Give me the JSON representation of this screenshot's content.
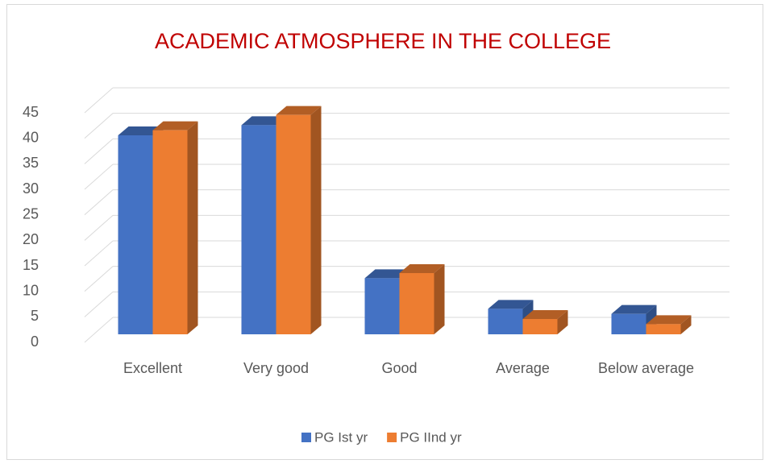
{
  "chart_data": {
    "type": "bar3d",
    "title": "ACADEMIC ATMOSPHERE IN THE COLLEGE",
    "categories": [
      "Excellent",
      "Very good",
      "Good",
      "Average",
      "Below average"
    ],
    "series": [
      {
        "name": "PG Ist yr",
        "color": "#4472c4",
        "values": [
          39,
          41,
          11,
          5,
          4
        ]
      },
      {
        "name": "PG IInd yr",
        "color": "#ed7d31",
        "values": [
          40,
          43,
          12,
          3,
          2
        ]
      }
    ],
    "ylim": [
      0,
      45
    ],
    "yticks": [
      0,
      5,
      10,
      15,
      20,
      25,
      30,
      35,
      40,
      45
    ],
    "grid": true,
    "legend": "bottom"
  }
}
